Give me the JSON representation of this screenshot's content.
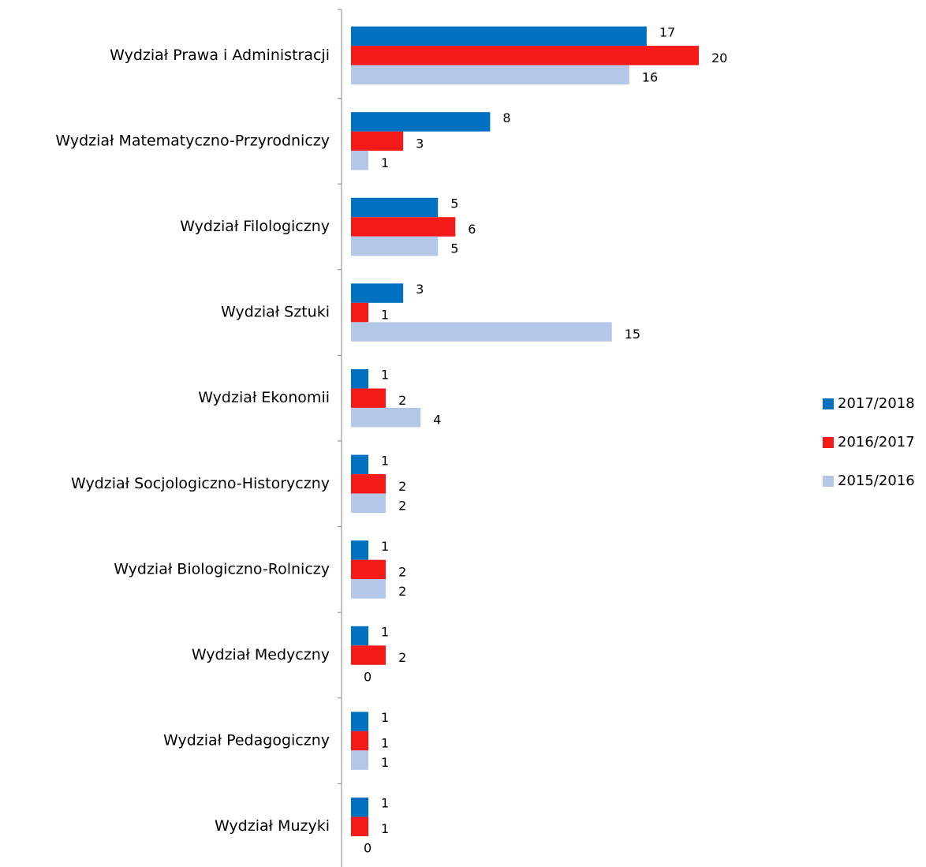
{
  "chart_data": {
    "type": "bar",
    "orientation": "horizontal",
    "categories": [
      "Wydział Prawa i Administracji",
      "Wydział Matematyczno-Przyrodniczy",
      "Wydział Filologiczny",
      "Wydział Sztuki",
      "Wydział Ekonomii",
      "Wydział Socjologiczno-Historyczny",
      "Wydział Biologiczno-Rolniczy",
      "Wydział Medyczny",
      "Wydział Pedagogiczny",
      "Wydział Muzyki"
    ],
    "series": [
      {
        "name": "2017/2018",
        "color": "#0070c0",
        "values": [
          17,
          8,
          5,
          3,
          1,
          1,
          1,
          1,
          1,
          1
        ]
      },
      {
        "name": "2016/2017",
        "color": "#f41a1a",
        "values": [
          20,
          3,
          6,
          1,
          2,
          2,
          2,
          2,
          1,
          1
        ]
      },
      {
        "name": "2015/2016",
        "color": "#b4c7e7",
        "values": [
          16,
          1,
          5,
          15,
          4,
          2,
          2,
          0,
          1,
          0
        ]
      }
    ],
    "xlim": [
      0,
      20
    ],
    "legend": "right"
  }
}
